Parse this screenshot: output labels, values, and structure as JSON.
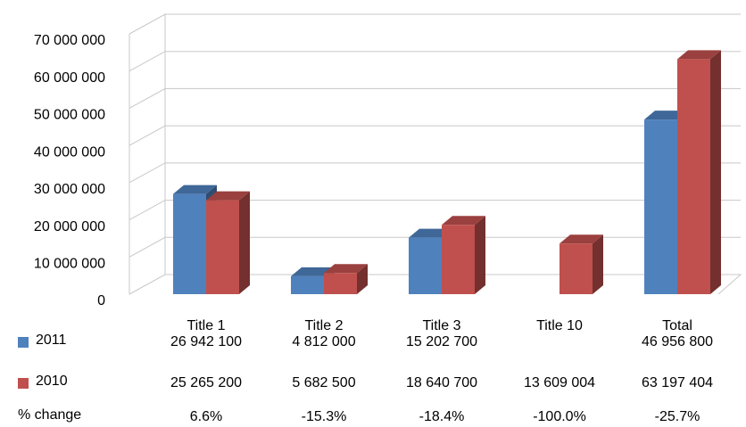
{
  "chart_data": {
    "type": "bar3d",
    "categories": [
      "Title 1",
      "Title 2",
      "Title 3",
      "Title 10",
      "Total"
    ],
    "series": [
      {
        "name": "2011",
        "color": "#4f81bd",
        "values": [
          26942100,
          4812000,
          15202700,
          null,
          46956800
        ],
        "value_labels": [
          "26 942 100",
          "4 812 000",
          "15 202 700",
          null,
          "46 956 800"
        ]
      },
      {
        "name": "2010",
        "color": "#c0504d",
        "values": [
          25265200,
          5682500,
          18640700,
          13609004,
          63197404
        ],
        "value_labels": [
          "25 265 200",
          "5 682 500",
          "18 640 700",
          "13 609 004",
          "63 197 404"
        ]
      }
    ],
    "change_row": {
      "name": "% change",
      "labels": [
        "6.6%",
        "-15.3%",
        "-18.4%",
        "-100.0%",
        "-25.7%"
      ]
    },
    "ylim": [
      0,
      70000000
    ],
    "yticks": [
      {
        "value": 0,
        "label": "0"
      },
      {
        "value": 10000000,
        "label": "10 000 000"
      },
      {
        "value": 20000000,
        "label": "20 000 000"
      },
      {
        "value": 30000000,
        "label": "30 000 000"
      },
      {
        "value": 40000000,
        "label": "40 000 000"
      },
      {
        "value": 50000000,
        "label": "50 000 000"
      },
      {
        "value": 60000000,
        "label": "60 000 000"
      },
      {
        "value": 70000000,
        "label": "70 000 000"
      }
    ],
    "grid": true
  }
}
